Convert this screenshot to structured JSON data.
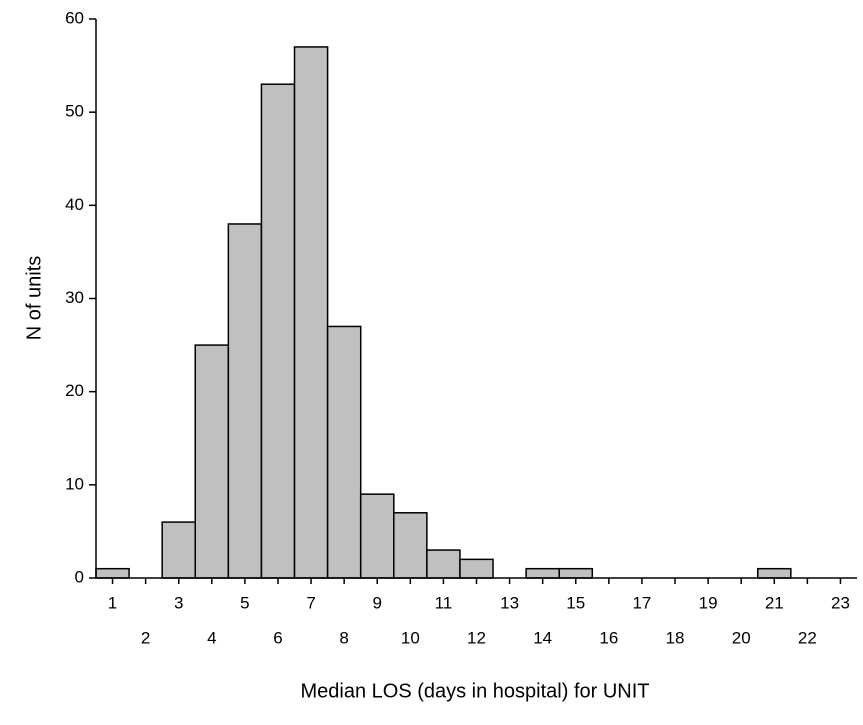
{
  "chart_data": {
    "type": "histogram",
    "x_label": "Median LOS (days in hospital) for UNIT",
    "y_label": "N of units",
    "bins": [
      0.5,
      1.5,
      2.5,
      3.5,
      4.5,
      5.5,
      6.5,
      7.5,
      8.5,
      9.5,
      10.5,
      11.5,
      12.5,
      13.5,
      14.5,
      15.5,
      16.5,
      17.5,
      18.5,
      19.5,
      20.5,
      21.5,
      22.5,
      23.5
    ],
    "values": [
      1,
      0,
      6,
      25,
      38,
      53,
      57,
      27,
      9,
      7,
      3,
      2,
      0,
      1,
      1,
      0,
      0,
      0,
      0,
      0,
      1,
      0,
      0
    ],
    "color": "#c0c0c0",
    "xlim": [
      0.5,
      23.5
    ],
    "xticks": [
      1,
      2,
      3,
      4,
      5,
      6,
      7,
      8,
      9,
      10,
      11,
      12,
      13,
      14,
      15,
      16,
      17,
      18,
      19,
      20,
      21,
      22,
      23
    ],
    "ylim": [
      0,
      60
    ],
    "yticks": [
      0,
      10,
      20,
      30,
      40,
      50,
      60
    ]
  }
}
